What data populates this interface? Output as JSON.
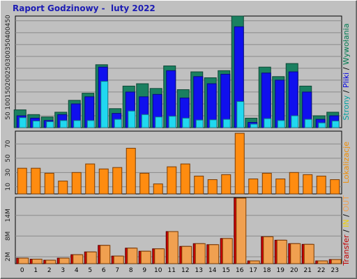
{
  "header": {
    "title": "Raport Godzinowy -  luty 2022"
  },
  "chart_data": {
    "type": "bar",
    "title": "Raport Godzinowy -  luty 2022",
    "categories": [
      "0",
      "1",
      "2",
      "3",
      "4",
      "5",
      "6",
      "7",
      "8",
      "9",
      "10",
      "11",
      "12",
      "13",
      "14",
      "15",
      "16",
      "17",
      "18",
      "19",
      "20",
      "21",
      "22",
      "23"
    ],
    "panels": [
      {
        "id": "top",
        "y_ticks": [
          50,
          100,
          150,
          200,
          250,
          300,
          350,
          400,
          450
        ],
        "ylim": [
          0,
          470
        ],
        "side_label": [
          {
            "text": "Strony",
            "color": "#00a0a0"
          },
          {
            "text": " / ",
            "color": "#000000"
          },
          {
            "text": "Pliki",
            "color": "#0000e0"
          },
          {
            "text": " / ",
            "color": "#000000"
          },
          {
            "text": "Wywołania",
            "color": "#007a50"
          }
        ],
        "series": [
          {
            "name": "Wywołania",
            "color": "#1a8060",
            "values": [
              75,
              55,
              45,
              65,
              115,
              145,
              265,
              80,
              175,
              185,
              165,
              260,
              160,
              235,
              210,
              240,
              470,
              40,
              255,
              215,
              270,
              175,
              50,
              65
            ]
          },
          {
            "name": "Pliki",
            "color": "#1010ee",
            "values": [
              50,
              40,
              30,
              55,
              100,
              130,
              255,
              60,
              150,
              130,
              140,
              240,
              125,
              215,
              185,
              225,
              425,
              22,
              230,
              200,
              235,
              150,
              35,
              50
            ]
          },
          {
            "name": "Strony",
            "color": "#20d8f0",
            "values": [
              42,
              28,
              25,
              30,
              30,
              30,
              195,
              35,
              70,
              55,
              45,
              48,
              40,
              32,
              33,
              35,
              110,
              15,
              38,
              30,
              50,
              35,
              20,
              28
            ]
          }
        ]
      },
      {
        "id": "middle",
        "y_ticks": [
          10,
          30,
          50,
          70
        ],
        "ylim": [
          0,
          88
        ],
        "side_label": [
          {
            "text": "Lokalizacje",
            "color": "#f08c00"
          }
        ],
        "series": [
          {
            "name": "Lokalizacje",
            "color": "#ff8c10",
            "values": [
              36,
              36,
              29,
              18,
              30,
              42,
              35,
              37,
              64,
              29,
              14,
              38,
              42,
              25,
              20,
              27,
              85,
              21,
              29,
              21,
              30,
              27,
              25,
              20
            ]
          }
        ]
      },
      {
        "id": "bottom",
        "y_ticks": [
          2,
          8,
          14
        ],
        "y_tick_labels": [
          "2M",
          "8M",
          "14M"
        ],
        "ylim": [
          0,
          19.2
        ],
        "side_label": [
          {
            "text": "Transfer",
            "color": "#c00000"
          },
          {
            "text": " / ",
            "color": "#000000"
          },
          {
            "text": "IN",
            "color": "#f0d000"
          },
          {
            "text": " / ",
            "color": "#000000"
          },
          {
            "text": "OUT",
            "color": "#f0a050"
          }
        ],
        "series": [
          {
            "name": "Transfer",
            "color": "#cc0000",
            "values": [
              1.6,
              1.3,
              1.0,
              1.6,
              2.6,
              3.4,
              5.3,
              2.2,
              4.5,
              3.6,
              4.3,
              9.3,
              5.0,
              5.8,
              5.5,
              7.3,
              19.0,
              0.8,
              7.8,
              6.8,
              5.8,
              5.6,
              0.8,
              1.2
            ]
          },
          {
            "name": "OUT",
            "color": "#f0a050",
            "values": [
              1.6,
              1.3,
              1.0,
              1.6,
              2.6,
              3.4,
              5.3,
              2.2,
              4.5,
              3.6,
              4.3,
              9.3,
              5.0,
              5.8,
              5.5,
              7.3,
              19.0,
              0.8,
              7.8,
              6.8,
              5.8,
              5.6,
              0.8,
              1.2
            ]
          }
        ]
      }
    ]
  }
}
